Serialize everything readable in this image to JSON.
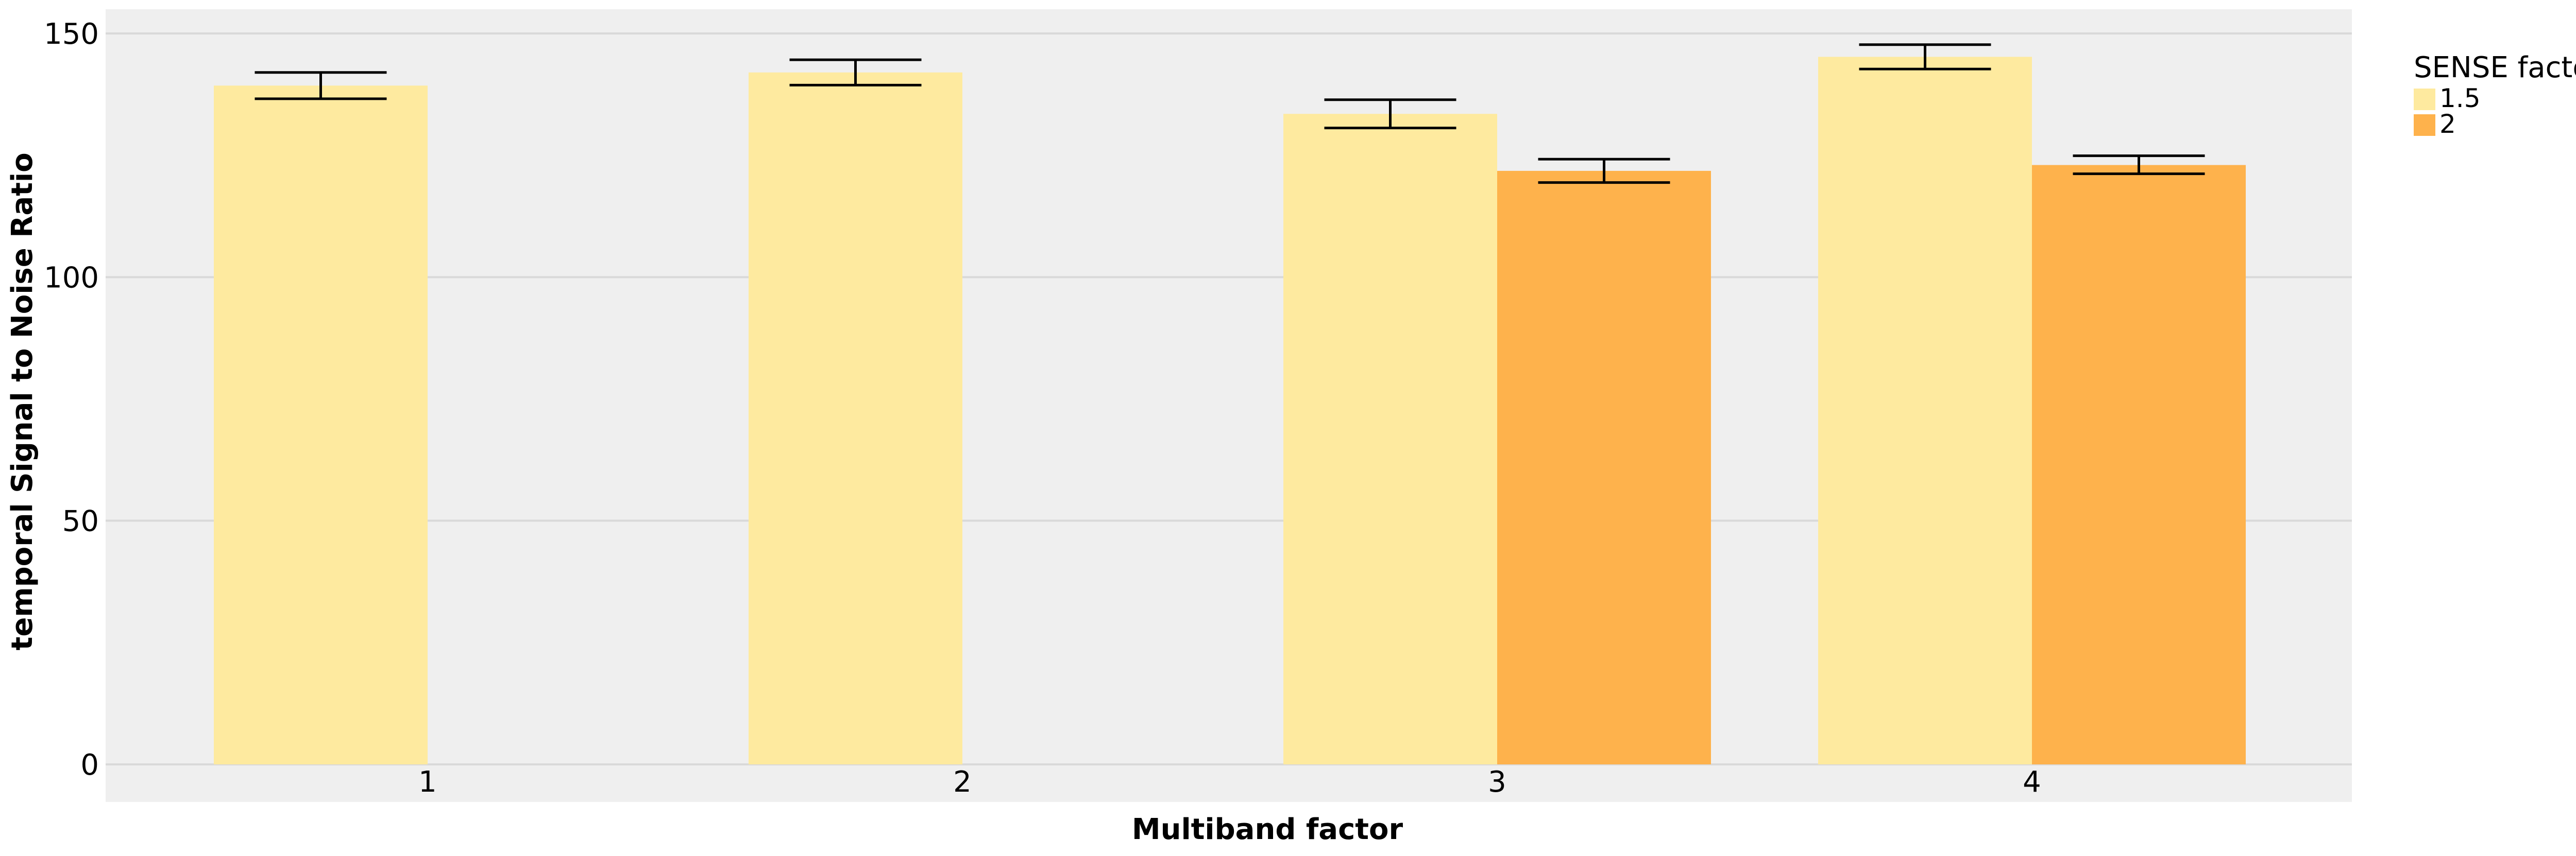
{
  "chart_data": {
    "type": "bar",
    "title": "",
    "xlabel": "Multiband factor",
    "ylabel": "temporal Signal to Noise Ratio",
    "categories": [
      "1",
      "2",
      "3",
      "4"
    ],
    "ylim": [
      0,
      150
    ],
    "yticks": [
      0,
      50,
      100,
      150
    ],
    "grid": true,
    "legend": {
      "title": "SENSE factor",
      "placement": "right-top"
    },
    "series": [
      {
        "name": "1.5",
        "color": "#FEEA9F",
        "values": [
          139.3,
          142.0,
          133.5,
          145.2
        ],
        "error_low": [
          136.6,
          139.4,
          130.6,
          142.7
        ],
        "error_high": [
          142.0,
          144.6,
          136.4,
          147.7
        ]
      },
      {
        "name": "2",
        "color": "#FEB24C",
        "values": [
          null,
          null,
          121.8,
          123.0
        ],
        "error_low": [
          null,
          null,
          119.4,
          121.2
        ],
        "error_high": [
          null,
          null,
          124.2,
          124.9
        ]
      }
    ],
    "colors": {
      "panel_background": "#EFEFEF",
      "gridline": "#D9D9D9",
      "errorbar": "#000000"
    }
  }
}
